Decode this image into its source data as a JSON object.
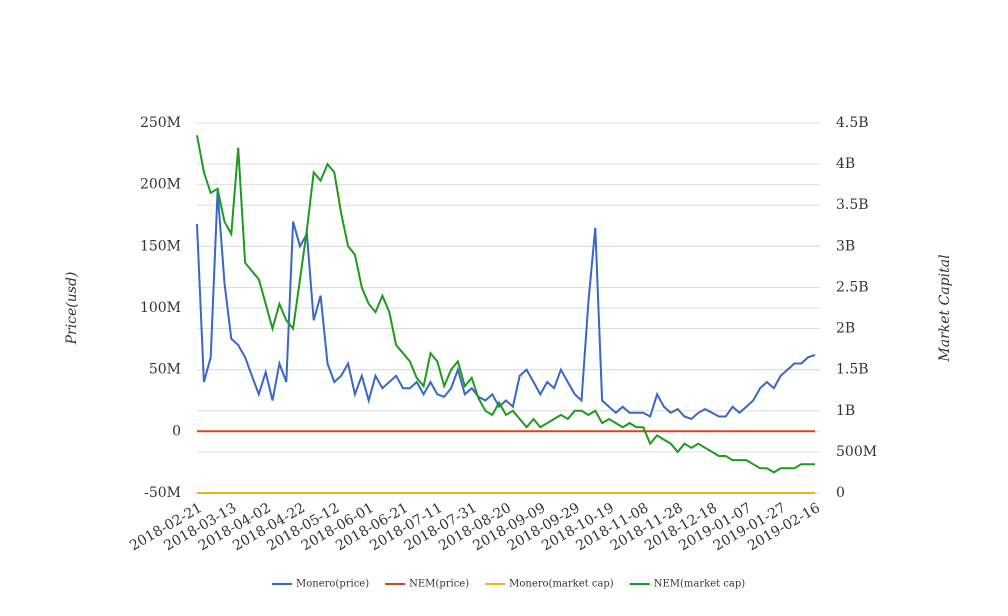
{
  "chart_data": {
    "type": "line",
    "categories": [
      "2018-02-21",
      null,
      null,
      null,
      null,
      "2018-03-13",
      null,
      null,
      null,
      null,
      "2018-04-02",
      null,
      null,
      null,
      null,
      "2018-04-22",
      null,
      null,
      null,
      null,
      "2018-05-12",
      null,
      null,
      null,
      null,
      "2018-06-01",
      null,
      null,
      null,
      null,
      "2018-06-21",
      null,
      null,
      null,
      null,
      "2018-07-11",
      null,
      null,
      null,
      null,
      "2018-07-31",
      null,
      null,
      null,
      null,
      "2018-08-20",
      null,
      null,
      null,
      null,
      "2018-09-09",
      null,
      null,
      null,
      null,
      "2018-09-29",
      null,
      null,
      null,
      null,
      "2018-10-19",
      null,
      null,
      null,
      null,
      "2018-11-08",
      null,
      null,
      null,
      null,
      "2018-11-28",
      null,
      null,
      null,
      null,
      "2018-12-18",
      null,
      null,
      null,
      null,
      "2019-01-07",
      null,
      null,
      null,
      null,
      "2019-01-27",
      null,
      null,
      null,
      null,
      "2019-02-16"
    ],
    "ylabel": "Price(usd)",
    "y2label": "Market Capital",
    "ylim": [
      -50000000.0,
      250000000.0
    ],
    "yticks": [
      {
        "value": -50000000.0,
        "label": "-50M"
      },
      0,
      {
        "value": 50000000.0,
        "label": "50M"
      },
      {
        "value": 100000000.0,
        "label": "100M"
      },
      {
        "value": 150000000.0,
        "label": "150M"
      },
      {
        "value": 200000000.0,
        "label": "200M"
      },
      {
        "value": 250000000.0,
        "label": "250M"
      }
    ],
    "y2lim": [
      0,
      4500000000.0
    ],
    "y2ticks": [
      0,
      {
        "value": 500000000.0,
        "label": "500M"
      },
      {
        "value": 1000000000.0,
        "label": "1B"
      },
      {
        "value": 1500000000.0,
        "label": "1.5B"
      },
      {
        "value": 2000000000.0,
        "label": "2B"
      },
      {
        "value": 2500000000.0,
        "label": "2.5B"
      },
      {
        "value": 3000000000.0,
        "label": "3B"
      },
      {
        "value": 3500000000.0,
        "label": "3.5B"
      },
      {
        "value": 4000000000.0,
        "label": "4B"
      },
      {
        "value": 4500000000.0,
        "label": "4.5B"
      }
    ],
    "grid": true,
    "legend": "bottom",
    "series": [
      {
        "name": "Monero(price)",
        "color": "#3a67c4",
        "values": [
          168000000.0,
          40000000.0,
          60000000.0,
          195000000.0,
          120000000.0,
          75000000.0,
          70000000.0,
          60000000.0,
          45000000.0,
          30000000.0,
          48000000.0,
          25000000.0,
          55000000.0,
          40000000.0,
          170000000.0,
          150000000.0,
          160000000.0,
          90000000.0,
          110000000.0,
          55000000.0,
          40000000.0,
          45000000.0,
          55000000.0,
          30000000.0,
          45000000.0,
          25000000.0,
          45000000.0,
          35000000.0,
          40000000.0,
          45000000.0,
          35000000.0,
          35000000.0,
          40000000.0,
          30000000.0,
          40000000.0,
          30000000.0,
          28000000.0,
          35000000.0,
          50000000.0,
          30000000.0,
          35000000.0,
          28000000.0,
          25000000.0,
          30000000.0,
          20000000.0,
          25000000.0,
          20000000.0,
          45000000.0,
          50000000.0,
          40000000.0,
          30000000.0,
          40000000.0,
          35000000.0,
          50000000.0,
          40000000.0,
          30000000.0,
          25000000.0,
          105000000.0,
          165000000.0,
          25000000.0,
          20000000.0,
          15000000.0,
          20000000.0,
          15000000.0,
          15000000.0,
          15000000.0,
          12000000.0,
          30000000.0,
          20000000.0,
          15000000.0,
          18000000.0,
          12000000.0,
          10000000.0,
          15000000.0,
          18000000.0,
          15000000.0,
          12000000.0,
          12000000.0,
          20000000.0,
          15000000.0,
          20000000.0,
          25000000.0,
          35000000.0,
          40000000.0,
          35000000.0,
          45000000.0,
          50000000.0,
          55000000.0,
          55000000.0,
          60000000.0,
          62000000.0
        ]
      },
      {
        "name": "NEM(price)",
        "color": "#d3451f",
        "values": [
          0,
          0,
          0,
          0,
          0,
          0,
          0,
          0,
          0,
          0,
          0,
          0,
          0,
          0,
          0,
          0,
          0,
          0,
          0,
          0,
          0,
          0,
          0,
          0,
          0,
          0,
          0,
          0,
          0,
          0,
          0,
          0,
          0,
          0,
          0,
          0,
          0,
          0,
          0,
          0,
          0,
          0,
          0,
          0,
          0,
          0,
          0,
          0,
          0,
          0,
          0,
          0,
          0,
          0,
          0,
          0,
          0,
          0,
          0,
          0,
          0,
          0,
          0,
          0,
          0,
          0,
          0,
          0,
          0,
          0,
          0,
          0,
          0,
          0,
          0,
          0,
          0,
          0,
          0,
          0,
          0,
          0,
          0,
          0,
          0,
          0,
          0,
          0,
          0,
          0,
          0
        ]
      },
      {
        "name": "Monero(market cap)",
        "color": "#f2b01e",
        "axis": "y2",
        "values": [
          0,
          0,
          0,
          0,
          0,
          0,
          0,
          0,
          0,
          0,
          0,
          0,
          0,
          0,
          0,
          0,
          0,
          0,
          0,
          0,
          0,
          0,
          0,
          0,
          0,
          0,
          0,
          0,
          0,
          0,
          0,
          0,
          0,
          0,
          0,
          0,
          0,
          0,
          0,
          0,
          0,
          0,
          0,
          0,
          0,
          0,
          0,
          0,
          0,
          0,
          0,
          0,
          0,
          0,
          0,
          0,
          0,
          0,
          0,
          0,
          0,
          0,
          0,
          0,
          0,
          0,
          0,
          0,
          0,
          0,
          0,
          0,
          0,
          0,
          0,
          0,
          0,
          0,
          0,
          0,
          0,
          0,
          0,
          0,
          0,
          0,
          0,
          0,
          0,
          0,
          0
        ]
      },
      {
        "name": "NEM(market cap)",
        "color": "#1e9a1e",
        "axis": "y2",
        "values": [
          4350000000.0,
          3900000000.0,
          3650000000.0,
          3700000000.0,
          3300000000.0,
          3150000000.0,
          4200000000.0,
          2800000000.0,
          2700000000.0,
          2600000000.0,
          2300000000.0,
          2000000000.0,
          2300000000.0,
          2100000000.0,
          2000000000.0,
          2600000000.0,
          3200000000.0,
          3900000000.0,
          3800000000.0,
          4000000000.0,
          3900000000.0,
          3400000000.0,
          3000000000.0,
          2900000000.0,
          2500000000.0,
          2300000000.0,
          2200000000.0,
          2400000000.0,
          2200000000.0,
          1800000000.0,
          1700000000.0,
          1600000000.0,
          1400000000.0,
          1300000000.0,
          1700000000.0,
          1600000000.0,
          1300000000.0,
          1500000000.0,
          1600000000.0,
          1300000000.0,
          1400000000.0,
          1150000000.0,
          1000000000.0,
          950000000.0,
          1100000000.0,
          950000000.0,
          1000000000.0,
          900000000.0,
          800000000.0,
          900000000.0,
          800000000.0,
          850000000.0,
          900000000.0,
          950000000.0,
          900000000.0,
          1000000000.0,
          1000000000.0,
          950000000.0,
          1000000000.0,
          850000000.0,
          900000000.0,
          850000000.0,
          800000000.0,
          850000000.0,
          800000000.0,
          800000000.0,
          600000000.0,
          700000000.0,
          650000000.0,
          600000000.0,
          500000000.0,
          600000000.0,
          550000000.0,
          600000000.0,
          550000000.0,
          500000000.0,
          450000000.0,
          450000000.0,
          400000000.0,
          400000000.0,
          400000000.0,
          350000000.0,
          300000000.0,
          300000000.0,
          250000000.0,
          300000000.0,
          300000000.0,
          300000000.0,
          350000000.0,
          350000000.0,
          350000000.0
        ]
      }
    ]
  }
}
